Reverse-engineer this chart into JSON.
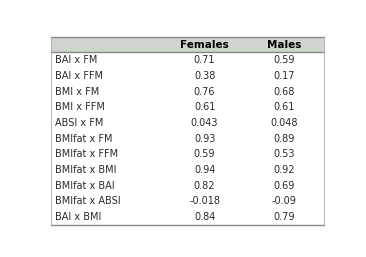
{
  "rows": [
    [
      "BAI x FM",
      "0.71",
      "0.59"
    ],
    [
      "BAI x FFM",
      "0.38",
      "0.17"
    ],
    [
      "BMI x FM",
      "0.76",
      "0.68"
    ],
    [
      "BMI x FFM",
      "0.61",
      "0.61"
    ],
    [
      "ABSI x FM",
      "0.043",
      "0.048"
    ],
    [
      "BMIfat x FM",
      "0.93",
      "0.89"
    ],
    [
      "BMIfat x FFM",
      "0.59",
      "0.53"
    ],
    [
      "BMIfat x BMI",
      "0.94",
      "0.92"
    ],
    [
      "BMIfat x BAI",
      "0.82",
      "0.69"
    ],
    [
      "BMIfat x ABSI",
      "-0.018",
      "-0.09"
    ],
    [
      "BAI x BMI",
      "0.84",
      "0.79"
    ]
  ],
  "col_headers": [
    "",
    "Females",
    "Males"
  ],
  "header_bg": "#cdd5cd",
  "header_font_size": 7.5,
  "row_font_size": 7.0,
  "table_bg": "#ffffff",
  "outer_bg": "#ffffff",
  "header_text_color": "#000000",
  "row_text_color": "#2a2a2a",
  "border_color": "#aaaaaa",
  "top_border_color": "#888888"
}
